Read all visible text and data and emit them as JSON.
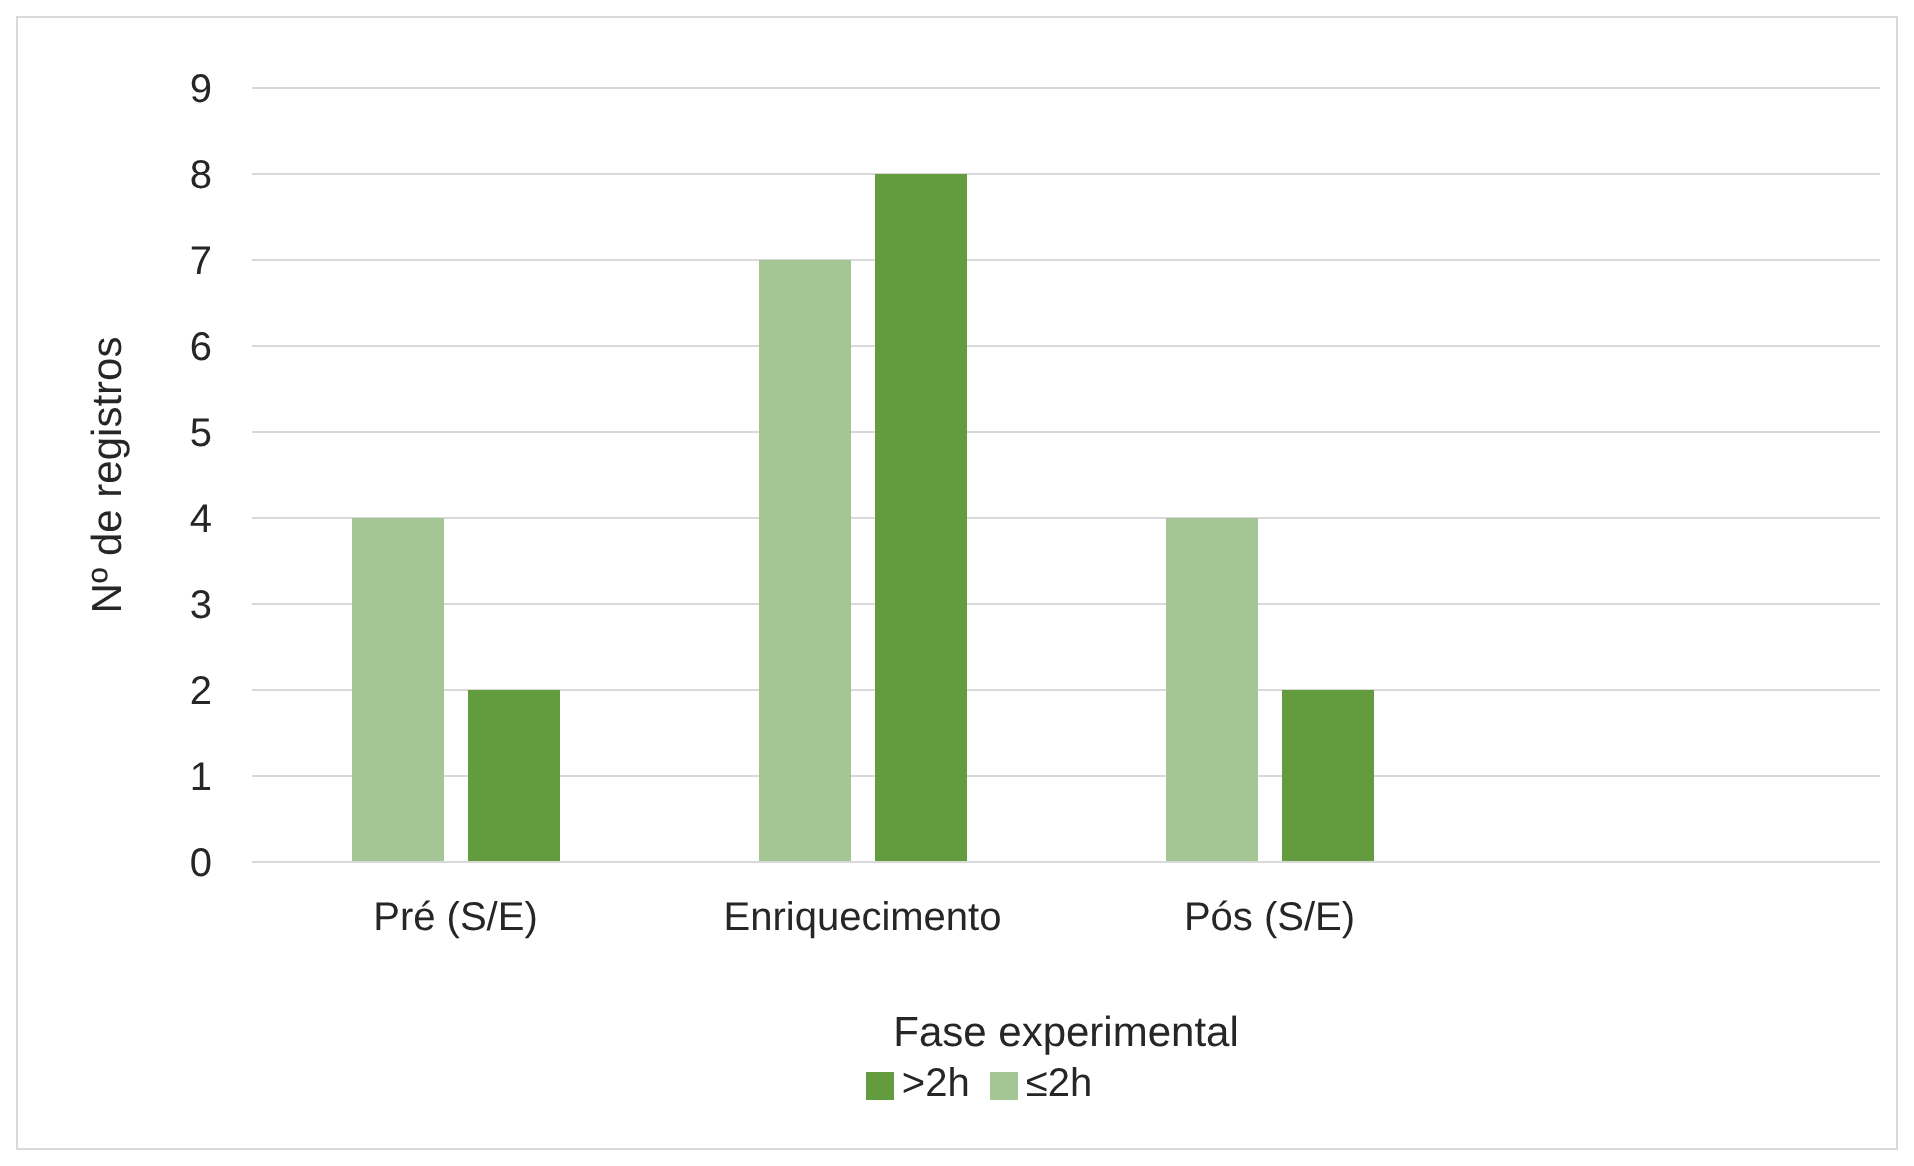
{
  "chart_data": {
    "type": "bar",
    "ylabel": "Nº de registros",
    "xlabel": "Fase experimental",
    "categories": [
      "Pré (S/E)",
      "Enriquecimento",
      "Pós (S/E)",
      null
    ],
    "series": [
      {
        "name": "≤2h",
        "color": "#a3c694",
        "values": [
          4,
          7,
          4,
          null
        ]
      },
      {
        "name": ">2h",
        "color": "#629c3e",
        "values": [
          2,
          8,
          2,
          null
        ]
      }
    ],
    "ylim": [
      0,
      9
    ],
    "yticks": [
      0,
      1,
      2,
      3,
      4,
      5,
      6,
      7,
      8,
      9
    ],
    "grid": "y",
    "legend": "bottom"
  }
}
